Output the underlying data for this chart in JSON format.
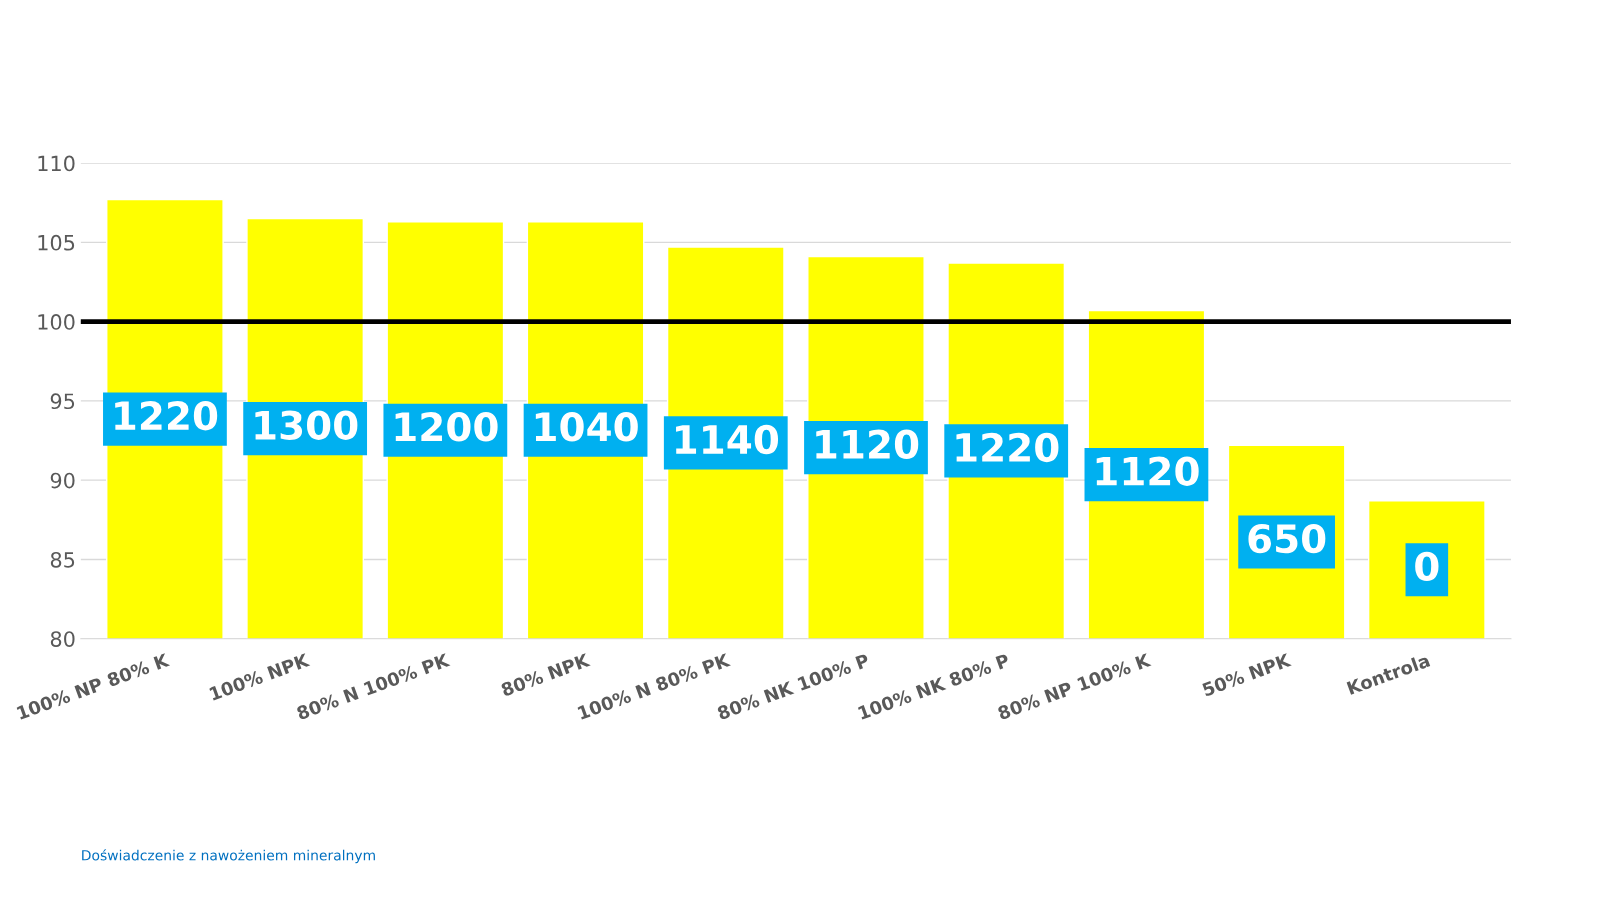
{
  "chart_data": {
    "type": "bar",
    "categories": [
      "100% NP 80% K",
      "100% NPK",
      "80% N 100% PK",
      "80% NPK",
      "100% N 80% PK",
      "80% NK 100% P",
      "100% NK 80% P",
      "80% NP 100% K",
      "50% NPK",
      "Kontrola"
    ],
    "values": [
      107.7,
      106.5,
      106.3,
      106.3,
      104.7,
      104.1,
      103.7,
      100.7,
      92.2,
      88.7
    ],
    "color": "#ffff00",
    "ylim": [
      80,
      110
    ],
    "yticks": [
      80,
      85,
      90,
      95,
      100,
      105,
      110
    ],
    "grid": "y",
    "legend": false,
    "ref_lines": [
      {
        "axis": "y",
        "value": 100,
        "color": "#000000"
      }
    ],
    "annotations": [
      "1220",
      "1300",
      "1200",
      "1040",
      "1140",
      "1120",
      "1220",
      "1120",
      "650",
      "0",
      "Doświadczenie z nawożeniem mineralnym"
    ]
  }
}
